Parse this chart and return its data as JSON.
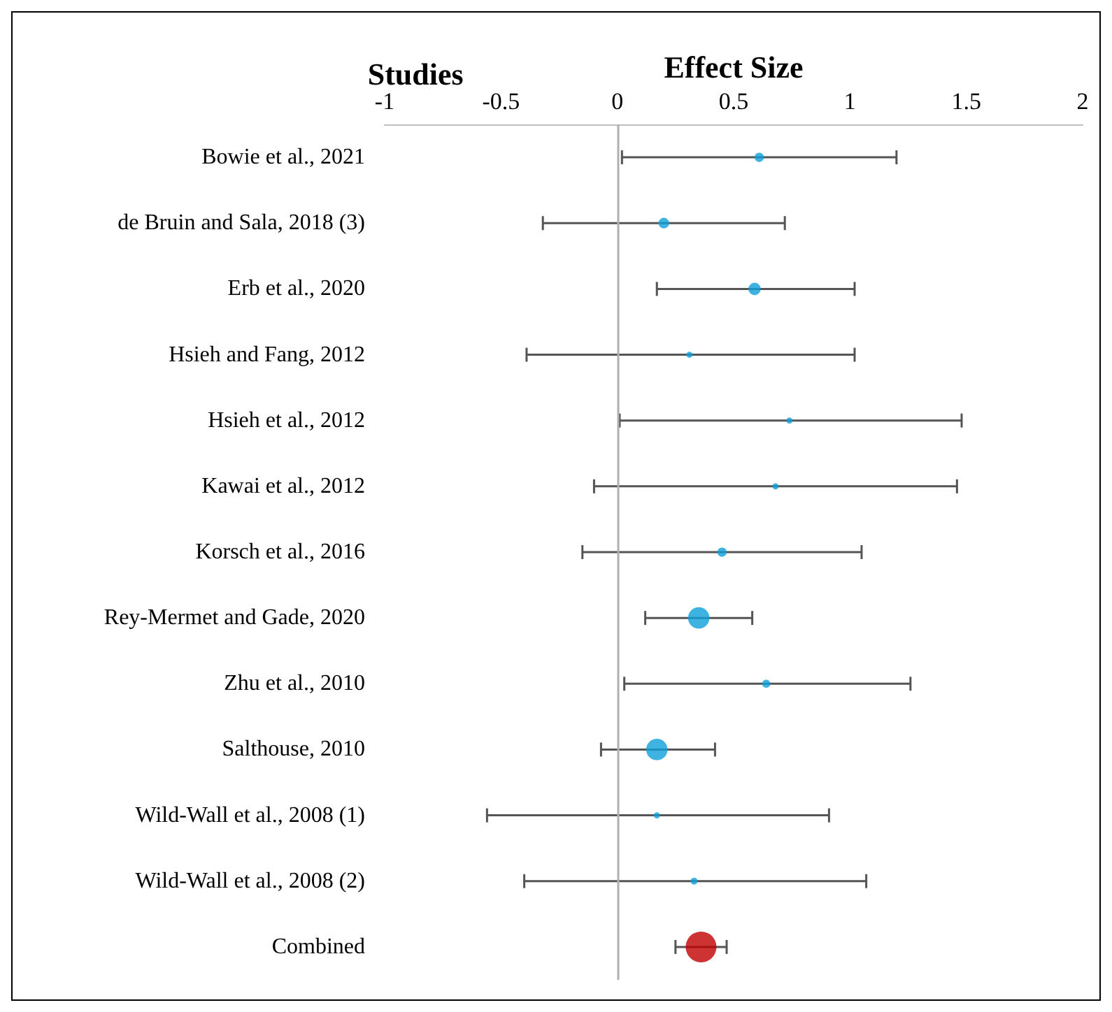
{
  "chart_data": {
    "type": "bubble",
    "orientation": "horizontal",
    "xlabel": "Effect Size",
    "ylabel": "Studies",
    "marker": "circle",
    "categories": [
      "Bowie et al., 2021",
      "de Bruin and Sala, 2018 (3)",
      "Erb et al., 2020",
      "Hsieh and Fang, 2012",
      "Hsieh et al., 2012",
      "Kawai et al., 2012",
      "Korsch et al., 2016",
      "Rey-Mermet and Gade, 2020",
      "Zhu et al., 2010",
      "Salthouse, 2010",
      "Wild-Wall et al., 2008 (1)",
      "Wild-Wall et al., 2008 (2)",
      "Combined"
    ],
    "values": [
      0.61,
      0.2,
      0.59,
      0.31,
      0.74,
      0.68,
      0.45,
      0.35,
      0.64,
      0.17,
      0.17,
      0.33,
      0.36
    ],
    "errors": [
      [
        0.02,
        1.2
      ],
      [
        -0.32,
        0.72
      ],
      [
        0.17,
        1.02
      ],
      [
        -0.39,
        1.02
      ],
      [
        0.01,
        1.48
      ],
      [
        -0.1,
        1.46
      ],
      [
        -0.15,
        1.05
      ],
      [
        0.12,
        0.58
      ],
      [
        0.03,
        1.26
      ],
      [
        -0.07,
        0.42
      ],
      [
        -0.56,
        0.91
      ],
      [
        -0.4,
        1.07
      ],
      [
        0.25,
        0.47
      ]
    ],
    "sizes": [
      0.09,
      0.12,
      0.16,
      0.04,
      0.04,
      0.04,
      0.09,
      0.49,
      0.07,
      0.49,
      0.04,
      0.05,
      1
    ],
    "colors": [
      "#0e9fd8",
      "#0e9fd8",
      "#0e9fd8",
      "#0e9fd8",
      "#0e9fd8",
      "#0e9fd8",
      "#0e9fd8",
      "#0e9fd8",
      "#0e9fd8",
      "#0e9fd8",
      "#0e9fd8",
      "#0e9fd8",
      "#c00000"
    ],
    "xlim": [
      -1,
      2
    ],
    "xticks": [
      -1,
      -0.5,
      0,
      0.5,
      1,
      1.5,
      2
    ],
    "ref_lines": [
      {
        "axis": "x",
        "value": 0,
        "color": "#b0b0b0"
      }
    ]
  }
}
